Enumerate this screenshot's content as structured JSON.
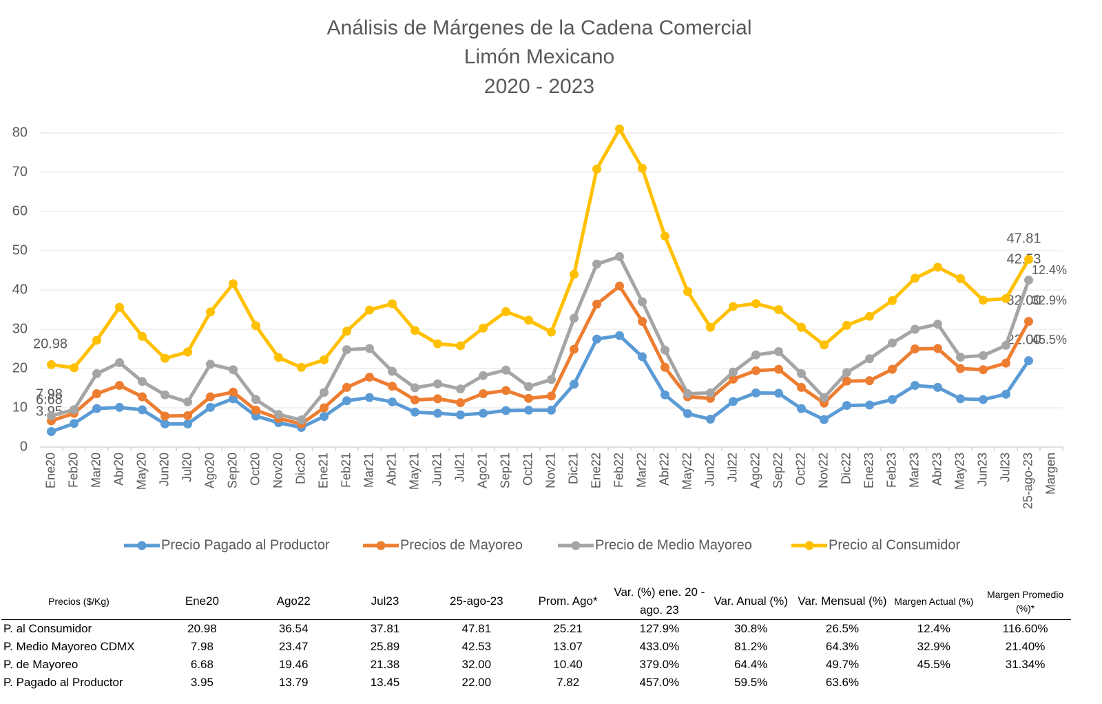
{
  "chart_data": {
    "type": "line",
    "title": [
      "Análisis de Márgenes de la Cadena Comercial",
      "Limón Mexicano",
      "2020 - 2023"
    ],
    "categories": [
      "Ene20",
      "Feb20",
      "Mar20",
      "Abr20",
      "May20",
      "Jun20",
      "Jul20",
      "Ago20",
      "Sep20",
      "Oct20",
      "Nov20",
      "Dic20",
      "Ene21",
      "Feb21",
      "Mar21",
      "Abr21",
      "May21",
      "Jun21",
      "Jul21",
      "Ago21",
      "Sep21",
      "Oct21",
      "Nov21",
      "Dic21",
      "Ene22",
      "Feb22",
      "Mar22",
      "Abr22",
      "May22",
      "Jun22",
      "Jul22",
      "Ago22",
      "Sep22",
      "Oct22",
      "Nov22",
      "Dic22",
      "Ene23",
      "Feb23",
      "Mar23",
      "Abr23",
      "May23",
      "Jun23",
      "Jul23",
      "25-ago-23",
      "Margen"
    ],
    "ylim": [
      0,
      80
    ],
    "yticks": [
      0,
      10,
      20,
      30,
      40,
      50,
      60,
      70,
      80
    ],
    "grid": true,
    "legend": "bottom",
    "series": [
      {
        "name": "Precio Pagado al Productor",
        "color": "#5b9bd5",
        "values": [
          3.95,
          6,
          9.8,
          10.1,
          9.5,
          5.9,
          5.9,
          10.1,
          12.3,
          7.9,
          6.2,
          5,
          7.8,
          11.8,
          12.6,
          11.5,
          8.9,
          8.6,
          8.2,
          8.6,
          9.3,
          9.4,
          9.4,
          16,
          27.5,
          28.4,
          23,
          13.3,
          8.5,
          7.1,
          11.6,
          13.79,
          13.7,
          9.8,
          7,
          10.6,
          10.7,
          12.1,
          15.7,
          15.2,
          12.3,
          12.1,
          13.45,
          22,
          null
        ],
        "value_labels": [
          "3.95",
          null,
          null,
          null,
          null,
          null,
          null,
          null,
          null,
          null,
          null,
          null,
          null,
          null,
          null,
          null,
          null,
          null,
          null,
          null,
          null,
          null,
          null,
          null,
          null,
          null,
          null,
          null,
          null,
          null,
          null,
          null,
          null,
          null,
          null,
          null,
          null,
          null,
          null,
          null,
          null,
          null,
          null,
          "22.00",
          null
        ]
      },
      {
        "name": "Precios de Mayoreo",
        "color": "#ed7d31",
        "margin_label": "45.5%",
        "values": [
          6.68,
          8.6,
          13.6,
          15.7,
          12.8,
          7.9,
          8,
          12.8,
          14,
          9.4,
          7.3,
          5.9,
          10,
          15.2,
          17.8,
          15.5,
          12,
          12.3,
          11.3,
          13.6,
          14.4,
          12.4,
          13,
          24.9,
          36.4,
          41,
          32,
          20.3,
          12.8,
          12.4,
          17.3,
          19.46,
          19.8,
          15.2,
          11.2,
          16.8,
          16.9,
          19.8,
          25,
          25.1,
          20,
          19.7,
          21.38,
          32,
          null
        ],
        "value_labels": [
          "6.68",
          null,
          null,
          null,
          null,
          null,
          null,
          null,
          null,
          null,
          null,
          null,
          null,
          null,
          null,
          null,
          null,
          null,
          null,
          null,
          null,
          null,
          null,
          null,
          null,
          null,
          null,
          null,
          null,
          null,
          null,
          null,
          null,
          null,
          null,
          null,
          null,
          null,
          null,
          null,
          null,
          null,
          null,
          "32.00",
          null
        ]
      },
      {
        "name": "Precio de Medio Mayoreo",
        "color": "#a5a5a5",
        "margin_label": "32.9%",
        "values": [
          7.98,
          9.5,
          18.7,
          21.5,
          16.7,
          13.3,
          11.5,
          21.1,
          19.7,
          12.1,
          8.3,
          6.9,
          13.9,
          24.8,
          25.1,
          19.3,
          15.1,
          16.1,
          14.8,
          18.2,
          19.6,
          15.4,
          17.2,
          32.8,
          46.6,
          48.5,
          37,
          24.7,
          13.6,
          13.8,
          19.1,
          23.47,
          24.3,
          18.7,
          12.6,
          19,
          22.5,
          26.5,
          30,
          31.3,
          22.9,
          23.3,
          25.89,
          42.53,
          null
        ],
        "value_labels": [
          "7.98",
          null,
          null,
          null,
          null,
          null,
          null,
          null,
          null,
          null,
          null,
          null,
          null,
          null,
          null,
          null,
          null,
          null,
          null,
          null,
          null,
          null,
          null,
          null,
          null,
          null,
          null,
          null,
          null,
          null,
          null,
          null,
          null,
          null,
          null,
          null,
          null,
          null,
          null,
          null,
          null,
          null,
          null,
          "42.53",
          null
        ]
      },
      {
        "name": "Precio al Consumidor",
        "color": "#ffc000",
        "margin_label": "12.4%",
        "values": [
          20.98,
          20.2,
          27.2,
          35.6,
          28.2,
          22.6,
          24.2,
          34.4,
          41.6,
          30.9,
          22.8,
          20.3,
          22.2,
          29.5,
          34.9,
          36.5,
          29.7,
          26.3,
          25.8,
          30.3,
          34.5,
          32.3,
          29.3,
          44,
          70.8,
          81,
          71,
          53.7,
          39.6,
          30.5,
          35.8,
          36.54,
          35,
          30.5,
          26,
          31,
          33.3,
          37.3,
          43,
          45.8,
          42.9,
          37.4,
          37.81,
          47.81,
          null
        ],
        "value_labels": [
          "20.98",
          null,
          null,
          null,
          null,
          null,
          null,
          null,
          null,
          null,
          null,
          null,
          null,
          null,
          null,
          null,
          null,
          null,
          null,
          null,
          null,
          null,
          null,
          null,
          null,
          null,
          null,
          null,
          null,
          null,
          null,
          null,
          null,
          null,
          null,
          null,
          null,
          null,
          null,
          null,
          null,
          null,
          null,
          "47.81",
          null
        ]
      }
    ]
  },
  "table": {
    "header": [
      "Precios ($/Kg)",
      "Ene20",
      "Ago22",
      "Jul23",
      "25-ago-23",
      "Prom. Ago*",
      "Var. (%) ene. 20 - ago. 23",
      "Var. Anual (%)",
      "Var. Mensual (%)",
      "Margen Actual (%)",
      "Margen Promedio (%)*"
    ],
    "rows": [
      [
        "P. al Consumidor",
        "20.98",
        "36.54",
        "37.81",
        "47.81",
        "25.21",
        "127.9%",
        "30.8%",
        "26.5%",
        "12.4%",
        "116.60%"
      ],
      [
        "P. Medio Mayoreo CDMX",
        "7.98",
        "23.47",
        "25.89",
        "42.53",
        "13.07",
        "433.0%",
        "81.2%",
        "64.3%",
        "32.9%",
        "21.40%"
      ],
      [
        "P. de Mayoreo",
        "6.68",
        "19.46",
        "21.38",
        "32.00",
        "10.40",
        "379.0%",
        "64.4%",
        "49.7%",
        "45.5%",
        "31.34%"
      ],
      [
        "P. Pagado al Productor",
        "3.95",
        "13.79",
        "13.45",
        "22.00",
        "7.82",
        "457.0%",
        "59.5%",
        "63.6%"
      ]
    ]
  }
}
